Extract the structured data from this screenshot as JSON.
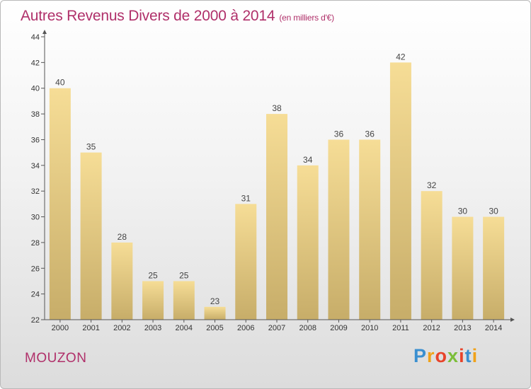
{
  "header": {
    "title": "Autres Revenus Divers de 2000 à 2014",
    "subtitle": "(en milliers d'€)"
  },
  "footer": {
    "commune": "MOUZON",
    "logo": "Proxiti"
  },
  "colors": {
    "title": "#b0306a",
    "bar_light": "#f6dd96",
    "bar_dark": "#c7ad69",
    "axis": "#555555"
  },
  "chart_data": {
    "type": "bar",
    "title": "Autres Revenus Divers de 2000 à 2014",
    "subtitle": "(en milliers d'€)",
    "xlabel": "",
    "ylabel": "",
    "categories": [
      "2000",
      "2001",
      "2002",
      "2003",
      "2004",
      "2005",
      "2006",
      "2007",
      "2008",
      "2009",
      "2010",
      "2011",
      "2012",
      "2013",
      "2014"
    ],
    "values": [
      40,
      35,
      28,
      25,
      25,
      23,
      31,
      38,
      34,
      36,
      36,
      42,
      32,
      30,
      30
    ],
    "ylim": [
      22,
      44
    ],
    "yticks": [
      22,
      24,
      26,
      28,
      30,
      32,
      34,
      36,
      38,
      40,
      42,
      44
    ],
    "grid": false,
    "legend": "none"
  }
}
